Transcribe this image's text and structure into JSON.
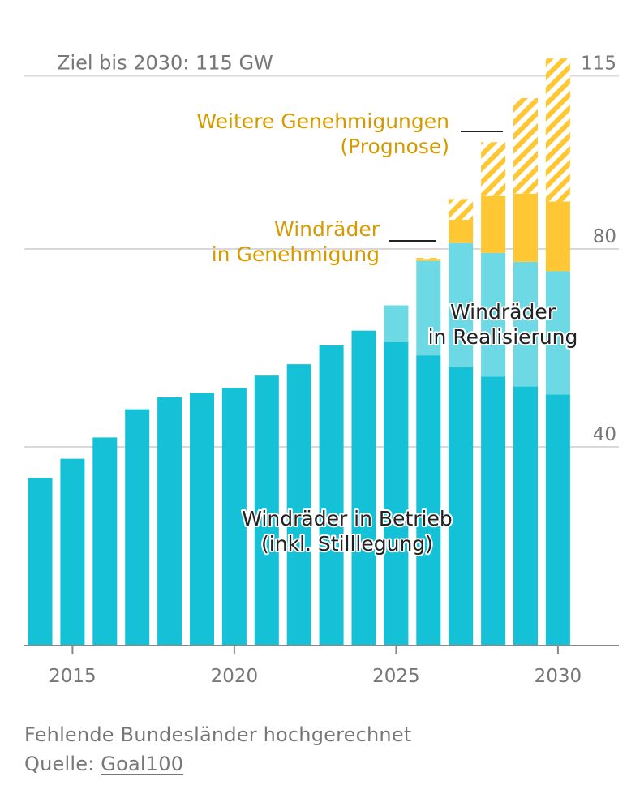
{
  "chart_data": {
    "type": "bar",
    "stacked": true,
    "x": [
      2014,
      2015,
      2016,
      2017,
      2018,
      2019,
      2020,
      2021,
      2022,
      2023,
      2024,
      2025,
      2026,
      2027,
      2028,
      2029,
      2030
    ],
    "x_ticks": [
      "2015",
      "2020",
      "2025",
      "2030"
    ],
    "y_ticks": [
      "40",
      "80",
      "115"
    ],
    "ylim": [
      0,
      120
    ],
    "target_label": "Ziel bis 2030: 115 GW",
    "target_value": 115,
    "grid": true,
    "series": [
      {
        "name": "Windräder in Betrieb (inkl. Stilllegung)",
        "label_lines": [
          "Windräder in Betrieb",
          "(inkl. Stilllegung)"
        ],
        "color": "#14C1D6",
        "values": [
          33.7,
          37.6,
          41.9,
          47.6,
          50.0,
          50.9,
          51.9,
          54.4,
          56.7,
          60.5,
          63.5,
          61.2,
          58.5,
          56.1,
          54.2,
          52.2,
          50.6
        ]
      },
      {
        "name": "Windräder in Realisierung",
        "label_lines": [
          "Windräder",
          "in Realisierung"
        ],
        "color": "#6CD9E4",
        "values": [
          0,
          0,
          0,
          0,
          0,
          0,
          0,
          0,
          0,
          0,
          0,
          7.4,
          19.1,
          25.1,
          25.0,
          25.2,
          24.9
        ]
      },
      {
        "name": "Windräder in Genehmigung",
        "label_lines": [
          "Windräder",
          "in Genehmigung"
        ],
        "color": "#FFC734",
        "values": [
          0,
          0,
          0,
          0,
          0,
          0,
          0,
          0,
          0,
          0,
          0,
          0,
          0.4,
          4.7,
          11.5,
          13.8,
          14.1
        ]
      },
      {
        "name": "Weitere Genehmigungen (Prognose)",
        "label_lines": [
          "Weitere Genehmigungen",
          "(Prognose)"
        ],
        "color": "#FFC734",
        "pattern": "hatched",
        "values": [
          0,
          0,
          0,
          0,
          0,
          0,
          0,
          0,
          0,
          0,
          0,
          0,
          0.2,
          4.2,
          10.9,
          19.3,
          28.9
        ]
      }
    ]
  },
  "footer": {
    "note": "Fehlende Bundesländer hochgerechnet",
    "source_prefix": "Quelle: ",
    "source_link": "Goal100"
  }
}
